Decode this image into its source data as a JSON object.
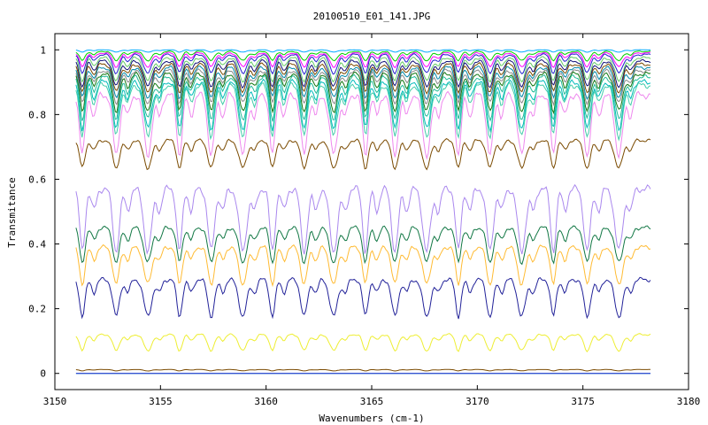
{
  "chart_data": {
    "type": "line",
    "title": "20100510_E01_141.JPG",
    "xlabel": "Wavenumbers (cm-1)",
    "ylabel": "Transmitance",
    "xlim": [
      3150,
      3180
    ],
    "ylim": [
      -0.05,
      1.05
    ],
    "x_ticks": [
      "3150",
      "3155",
      "3160",
      "3165",
      "3170",
      "3175",
      "3180"
    ],
    "y_ticks": [
      "0",
      "0.2",
      "0.4",
      "0.6",
      "0.8",
      "1"
    ],
    "x_range": [
      3151,
      3178.2
    ],
    "line_centers": [
      3151.3,
      3152.9,
      3154.4,
      3155.9,
      3157.4,
      3158.9,
      3160.3,
      3161.8,
      3163.2,
      3164.7,
      3166.1,
      3167.6,
      3169.1,
      3170.6,
      3172.1,
      3173.6,
      3175.2,
      3176.7
    ],
    "grid": false,
    "series": [
      {
        "color": "#00aaff",
        "base": 1.0,
        "depth": 0.01
      },
      {
        "color": "#00cc00",
        "base": 0.995,
        "depth": 0.04
      },
      {
        "color": "#ff00ff",
        "base": 0.99,
        "depth": 0.06
      },
      {
        "color": "#2222cc",
        "base": 0.985,
        "depth": 0.08
      },
      {
        "color": "#66cc66",
        "base": 0.975,
        "depth": 0.1
      },
      {
        "color": "#111177",
        "base": 0.965,
        "depth": 0.11
      },
      {
        "color": "#7a4a00",
        "base": 0.955,
        "depth": 0.12
      },
      {
        "color": "#0088aa",
        "base": 0.945,
        "depth": 0.13
      },
      {
        "color": "#888888",
        "base": 0.935,
        "depth": 0.14
      },
      {
        "color": "#117711",
        "base": 0.925,
        "depth": 0.16
      },
      {
        "color": "#22bb99",
        "base": 0.915,
        "depth": 0.18
      },
      {
        "color": "#00bbbb",
        "base": 0.9,
        "depth": 0.2
      },
      {
        "color": "#44ccaa",
        "base": 0.89,
        "depth": 0.22
      },
      {
        "color": "#ee88ee",
        "base": 0.86,
        "depth": 0.26
      },
      {
        "color": "#7a4a00",
        "base": 0.72,
        "depth": 0.12
      },
      {
        "color": "#aa88ee",
        "base": 0.57,
        "depth": 0.27
      },
      {
        "color": "#117744",
        "base": 0.45,
        "depth": 0.15
      },
      {
        "color": "#ffbb33",
        "base": 0.39,
        "depth": 0.16
      },
      {
        "color": "#222299",
        "base": 0.29,
        "depth": 0.16
      },
      {
        "color": "#eeee33",
        "base": 0.12,
        "depth": 0.07
      },
      {
        "color": "#7a4a00",
        "base": 0.012,
        "depth": 0.006
      },
      {
        "color": "#00cccc",
        "base": 0.0,
        "depth": 0.0
      },
      {
        "color": "#2222cc",
        "base": 0.0,
        "depth": 0.0
      }
    ]
  }
}
